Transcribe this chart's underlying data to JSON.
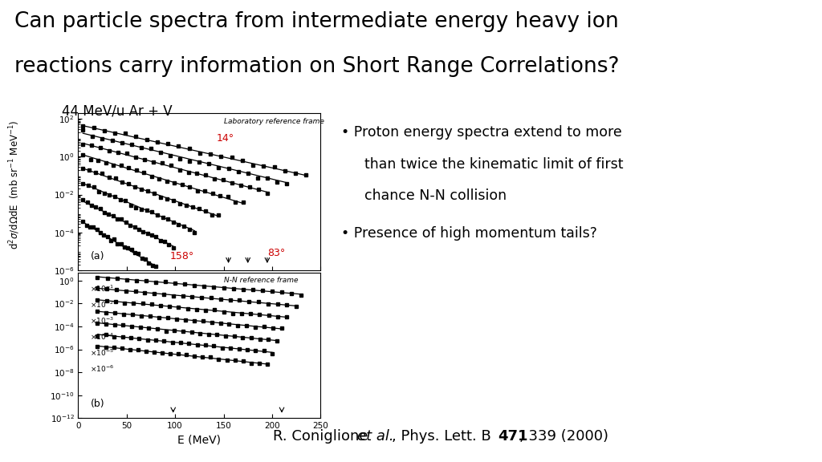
{
  "title_line1": "Can particle spectra from intermediate energy heavy ion",
  "title_line2": "reactions carry information on Short Range Correlations?",
  "subtitle": "44 MeV/u Ar + V",
  "ylabel_top": "d²σ/dΩdE  (mb sr⁻¹ MeV⁻¹)",
  "xlabel": "E (MeV)",
  "panel_a_label": "Laboratory reference frame",
  "panel_b_label": "N-N reference frame",
  "bullet1a": "Proton energy spectra extend to more",
  "bullet1b": "than twice the kinematic limit of first",
  "bullet1c": "chance N-N collision",
  "bullet2": "Presence of high momentum tails?",
  "bg_color": "#ffffff",
  "title_color": "#000000",
  "red_color": "#cc0000",
  "citation_bg": "#ffff00",
  "panel_a": {
    "norms": [
      50,
      20,
      6,
      1.5,
      0.3,
      0.05,
      0.006,
      0.0005
    ],
    "temps": [
      38,
      35,
      32,
      28,
      24,
      20,
      17,
      14
    ],
    "emaxs": [
      235,
      215,
      195,
      170,
      145,
      120,
      98,
      80
    ],
    "estart": [
      5,
      5,
      5,
      5,
      5,
      5,
      5,
      5
    ]
  },
  "panel_b": {
    "norms": [
      3.0,
      0.3,
      0.03,
      0.003,
      0.0003,
      3e-05,
      3e-06
    ],
    "temps": [
      60,
      58,
      56,
      54,
      52,
      50,
      48
    ],
    "emaxs": [
      230,
      225,
      215,
      210,
      205,
      200,
      195
    ],
    "estart": [
      20,
      20,
      20,
      20,
      20,
      20,
      20
    ]
  }
}
